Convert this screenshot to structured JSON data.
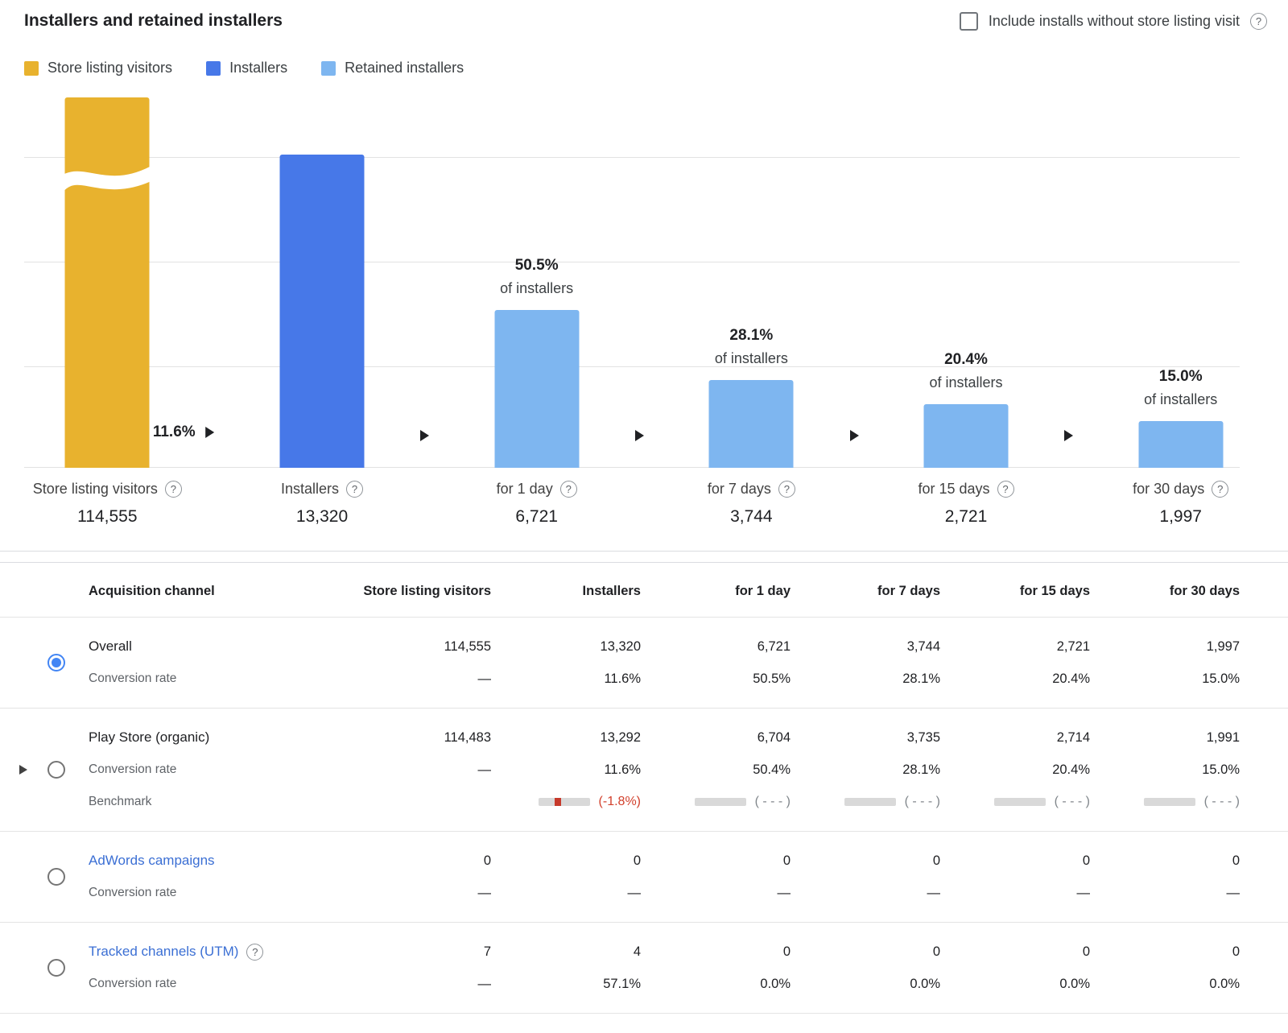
{
  "header": {
    "title": "Installers and retained installers",
    "checkbox_label": "Include installs without store listing visit"
  },
  "legend": {
    "items": [
      {
        "label": "Store listing visitors",
        "color": "#E8B22E"
      },
      {
        "label": "Installers",
        "color": "#4778E8"
      },
      {
        "label": "Retained installers",
        "color": "#7EB6F0"
      }
    ]
  },
  "chart_data": {
    "type": "bar",
    "title": "Installers and retained installers",
    "categories": [
      "Store listing visitors",
      "Installers",
      "for 1 day",
      "for 7 days",
      "for 15 days",
      "for 30 days"
    ],
    "values": [
      114555,
      13320,
      6721,
      3744,
      2721,
      1997
    ],
    "value_labels": [
      "114,555",
      "13,320",
      "6,721",
      "3,744",
      "2,721",
      "1,997"
    ],
    "percent_of_installers": [
      null,
      "11.6%",
      "50.5%",
      "28.1%",
      "20.4%",
      "15.0%"
    ],
    "percent_sublabel": "of installers",
    "bar_colors": [
      "#E8B22E",
      "#4778E8",
      "#7EB6F0",
      "#7EB6F0",
      "#7EB6F0",
      "#7EB6F0"
    ],
    "ylim": [
      0,
      15750
    ],
    "grid": true,
    "first_bar_truncated": true,
    "legend_position": "top"
  },
  "table": {
    "headers": [
      "Acquisition channel",
      "Store listing visitors",
      "Installers",
      "for 1 day",
      "for 7 days",
      "for 15 days",
      "for 30 days"
    ],
    "conversion_label": "Conversion rate",
    "benchmark_label": "Benchmark",
    "rows": [
      {
        "channel": "Overall",
        "selected": true,
        "link": false,
        "expandable": false,
        "help": false,
        "values": [
          "114,555",
          "13,320",
          "6,721",
          "3,744",
          "2,721",
          "1,997"
        ],
        "conversion": [
          "—",
          "11.6%",
          "50.5%",
          "28.1%",
          "20.4%",
          "15.0%"
        ]
      },
      {
        "channel": "Play Store (organic)",
        "selected": false,
        "link": false,
        "expandable": true,
        "help": false,
        "values": [
          "114,483",
          "13,292",
          "6,704",
          "3,735",
          "2,714",
          "1,991"
        ],
        "conversion": [
          "—",
          "11.6%",
          "50.4%",
          "28.1%",
          "20.4%",
          "15.0%"
        ],
        "benchmark": [
          "",
          "(-1.8%)",
          "( - - - )",
          "( - - - )",
          "( - - - )",
          "( - - - )"
        ]
      },
      {
        "channel": "AdWords campaigns",
        "selected": false,
        "link": true,
        "expandable": false,
        "help": false,
        "values": [
          "0",
          "0",
          "0",
          "0",
          "0",
          "0"
        ],
        "conversion": [
          "—",
          "—",
          "—",
          "—",
          "—",
          "—"
        ]
      },
      {
        "channel": "Tracked channels (UTM)",
        "selected": false,
        "link": true,
        "expandable": false,
        "help": true,
        "values": [
          "7",
          "4",
          "0",
          "0",
          "0",
          "0"
        ],
        "conversion": [
          "—",
          "57.1%",
          "0.0%",
          "0.0%",
          "0.0%",
          "0.0%"
        ]
      }
    ]
  },
  "colors": {
    "negative": "#D2402C",
    "link": "#3B6FD4",
    "accent_blue": "#4285F4",
    "benchmark_bar": "#D9D9D9"
  }
}
